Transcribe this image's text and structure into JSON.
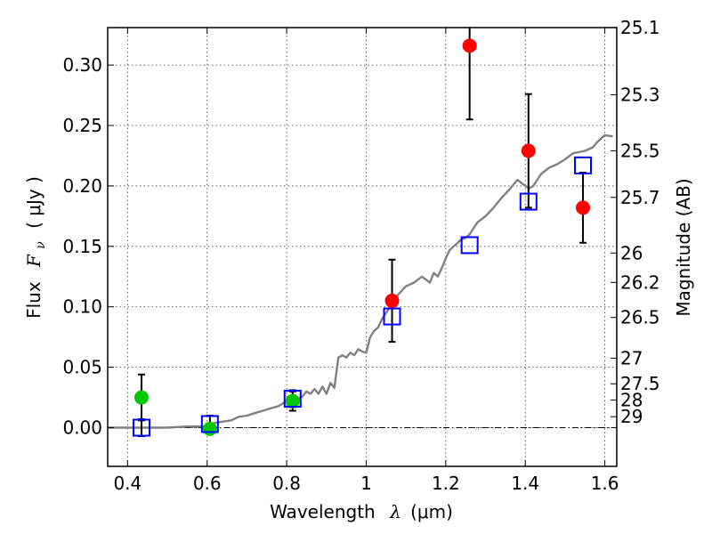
{
  "chart_data": {
    "type": "scatter",
    "title": "",
    "xlabel": "Wavelength",
    "xlabel_symbol": "λ",
    "xlabel_unit": "(μm)",
    "ylabel_prefix": "Flux",
    "ylabel_symbol": "F",
    "ylabel_subscript": "ν",
    "ylabel_unit": "( μJy )",
    "y2label": "Magnitude (AB)",
    "xlim": [
      0.35,
      1.63
    ],
    "ylim": [
      -0.032,
      0.331
    ],
    "grid": true,
    "x_ticks": [
      {
        "value": 0.4,
        "label": "0.4"
      },
      {
        "value": 0.6,
        "label": "0.6"
      },
      {
        "value": 0.8,
        "label": "0.8"
      },
      {
        "value": 1.0,
        "label": "1"
      },
      {
        "value": 1.2,
        "label": "1.2"
      },
      {
        "value": 1.4,
        "label": "1.4"
      },
      {
        "value": 1.6,
        "label": "1.6"
      }
    ],
    "y_ticks": [
      {
        "value": 0.0,
        "label": "0.00"
      },
      {
        "value": 0.05,
        "label": "0.05"
      },
      {
        "value": 0.1,
        "label": "0.10"
      },
      {
        "value": 0.15,
        "label": "0.15"
      },
      {
        "value": 0.2,
        "label": "0.20"
      },
      {
        "value": 0.25,
        "label": "0.25"
      },
      {
        "value": 0.3,
        "label": "0.30"
      }
    ],
    "y2_ticks": [
      {
        "flux": 0.3311,
        "label": "25.1"
      },
      {
        "flux": 0.2754,
        "label": "25.3"
      },
      {
        "flux": 0.2291,
        "label": "25.5"
      },
      {
        "flux": 0.1905,
        "label": "25.7"
      },
      {
        "flux": 0.1445,
        "label": "26"
      },
      {
        "flux": 0.1202,
        "label": "26.2"
      },
      {
        "flux": 0.0912,
        "label": "26.5"
      },
      {
        "flux": 0.0575,
        "label": "27"
      },
      {
        "flux": 0.0363,
        "label": "27.5"
      },
      {
        "flux": 0.0229,
        "label": "28"
      },
      {
        "flux": 0.0091,
        "label": "29"
      }
    ],
    "series": [
      {
        "kind": "line",
        "color": "#808080",
        "x": [
          0.35,
          0.4,
          0.44,
          0.5,
          0.55,
          0.6,
          0.62,
          0.64,
          0.66,
          0.68,
          0.7,
          0.72,
          0.74,
          0.76,
          0.78,
          0.8,
          0.82,
          0.84,
          0.85,
          0.86,
          0.87,
          0.88,
          0.89,
          0.9,
          0.91,
          0.92,
          0.93,
          0.94,
          0.95,
          0.96,
          0.97,
          0.98,
          0.99,
          1.0,
          1.01,
          1.02,
          1.03,
          1.04,
          1.06,
          1.08,
          1.1,
          1.12,
          1.14,
          1.16,
          1.17,
          1.18,
          1.19,
          1.2,
          1.21,
          1.22,
          1.23,
          1.24,
          1.25,
          1.26,
          1.27,
          1.28,
          1.3,
          1.32,
          1.34,
          1.36,
          1.38,
          1.4,
          1.41,
          1.42,
          1.44,
          1.46,
          1.48,
          1.5,
          1.52,
          1.55,
          1.57,
          1.58,
          1.59,
          1.6,
          1.62
        ],
        "y": [
          0.0,
          0.0,
          0.0,
          0.0,
          0.001,
          0.001,
          0.004,
          0.005,
          0.006,
          0.009,
          0.01,
          0.012,
          0.014,
          0.016,
          0.018,
          0.022,
          0.022,
          0.026,
          0.03,
          0.028,
          0.032,
          0.028,
          0.034,
          0.028,
          0.037,
          0.033,
          0.058,
          0.06,
          0.058,
          0.062,
          0.06,
          0.065,
          0.063,
          0.062,
          0.075,
          0.08,
          0.083,
          0.09,
          0.1,
          0.11,
          0.117,
          0.12,
          0.125,
          0.12,
          0.128,
          0.125,
          0.132,
          0.14,
          0.147,
          0.15,
          0.153,
          0.156,
          0.157,
          0.16,
          0.165,
          0.17,
          0.175,
          0.182,
          0.19,
          0.197,
          0.205,
          0.2,
          0.198,
          0.2,
          0.21,
          0.215,
          0.218,
          0.222,
          0.227,
          0.229,
          0.232,
          0.236,
          0.239,
          0.242,
          0.241
        ]
      },
      {
        "kind": "marker",
        "marker": "circle",
        "color": "#00c800",
        "x": [
          0.435,
          0.607,
          0.815
        ],
        "y": [
          0.025,
          -0.001,
          0.022
        ],
        "yerr": [
          0.019,
          0.0,
          0.008
        ]
      },
      {
        "kind": "marker",
        "marker": "circle",
        "color": "#ff0000",
        "x": [
          1.065,
          1.26,
          1.408,
          1.545
        ],
        "y": [
          0.105,
          0.316,
          0.229,
          0.182
        ],
        "yerr": [
          0.034,
          0.061,
          0.047,
          0.029
        ]
      },
      {
        "kind": "marker",
        "marker": "open-square",
        "color": "#0000ff",
        "x": [
          0.435,
          0.607,
          0.815,
          1.065,
          1.26,
          1.408,
          1.545
        ],
        "y": [
          0.0,
          0.003,
          0.024,
          0.092,
          0.151,
          0.187,
          0.217
        ],
        "yerr": [
          0.007,
          0.007,
          0.007,
          0.0,
          0.0,
          0.0,
          0.0
        ]
      }
    ],
    "hline": {
      "y": 0.0,
      "style": "dash-dot",
      "color": "#000000"
    }
  }
}
